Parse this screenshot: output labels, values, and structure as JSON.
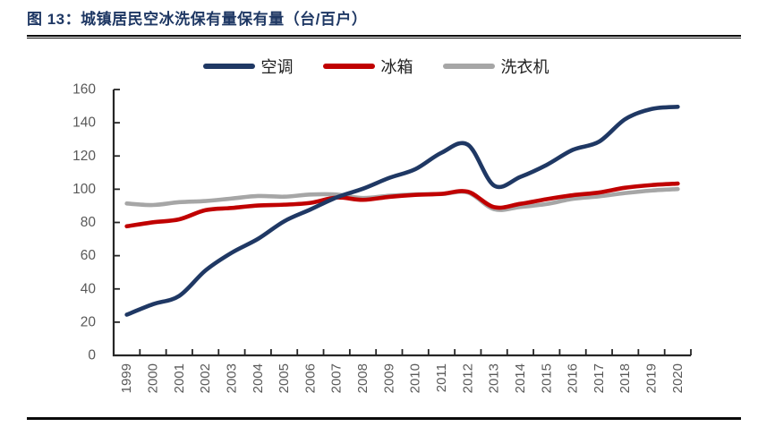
{
  "header": {
    "title": "图 13：城镇居民空冰洗保有量保有量（台/百户）"
  },
  "legend": [
    {
      "label": "空调",
      "color": "#1f3864"
    },
    {
      "label": "冰箱",
      "color": "#c00000"
    },
    {
      "label": "洗衣机",
      "color": "#a6a6a6"
    }
  ],
  "chart_data": {
    "type": "line",
    "title": "图 13：城镇居民空冰洗保有量保有量（台/百户）",
    "xlabel": "",
    "ylabel": "",
    "x": [
      "1999",
      "2000",
      "2001",
      "2002",
      "2003",
      "2004",
      "2005",
      "2006",
      "2007",
      "2008",
      "2009",
      "2010",
      "2011",
      "2012",
      "2013",
      "2014",
      "2015",
      "2016",
      "2017",
      "2018",
      "2019",
      "2020"
    ],
    "series": [
      {
        "name": "空调",
        "color": "#1f3864",
        "values": [
          24.5,
          30.8,
          35.8,
          51.1,
          61.8,
          70.1,
          80.7,
          87.8,
          95.1,
          100.3,
          106.8,
          112.1,
          122.0,
          126.8,
          102.2,
          107.4,
          114.6,
          123.7,
          128.6,
          142.2,
          148.3,
          149.6
        ]
      },
      {
        "name": "冰箱",
        "color": "#c00000",
        "values": [
          77.7,
          80.1,
          81.9,
          87.4,
          88.7,
          90.2,
          90.7,
          91.8,
          95.0,
          93.6,
          95.4,
          96.6,
          97.2,
          98.5,
          89.2,
          91.2,
          94.0,
          96.4,
          98.0,
          100.9,
          102.5,
          103.4
        ]
      },
      {
        "name": "洗衣机",
        "color": "#a6a6a6",
        "values": [
          91.4,
          90.5,
          92.2,
          92.9,
          94.4,
          95.9,
          95.5,
          96.8,
          96.8,
          94.7,
          96.1,
          96.9,
          97.1,
          98.0,
          88.0,
          89.3,
          91.1,
          94.2,
          95.7,
          97.7,
          99.2,
          100.1
        ]
      }
    ],
    "ylim": [
      0,
      160
    ],
    "ytick_step": 20,
    "yticks": [
      "0",
      "20",
      "40",
      "60",
      "80",
      "100",
      "120",
      "140",
      "160"
    ],
    "grid": false,
    "legend_position": "top",
    "axis_color": "#262626",
    "tick_label_color": "#595959"
  }
}
